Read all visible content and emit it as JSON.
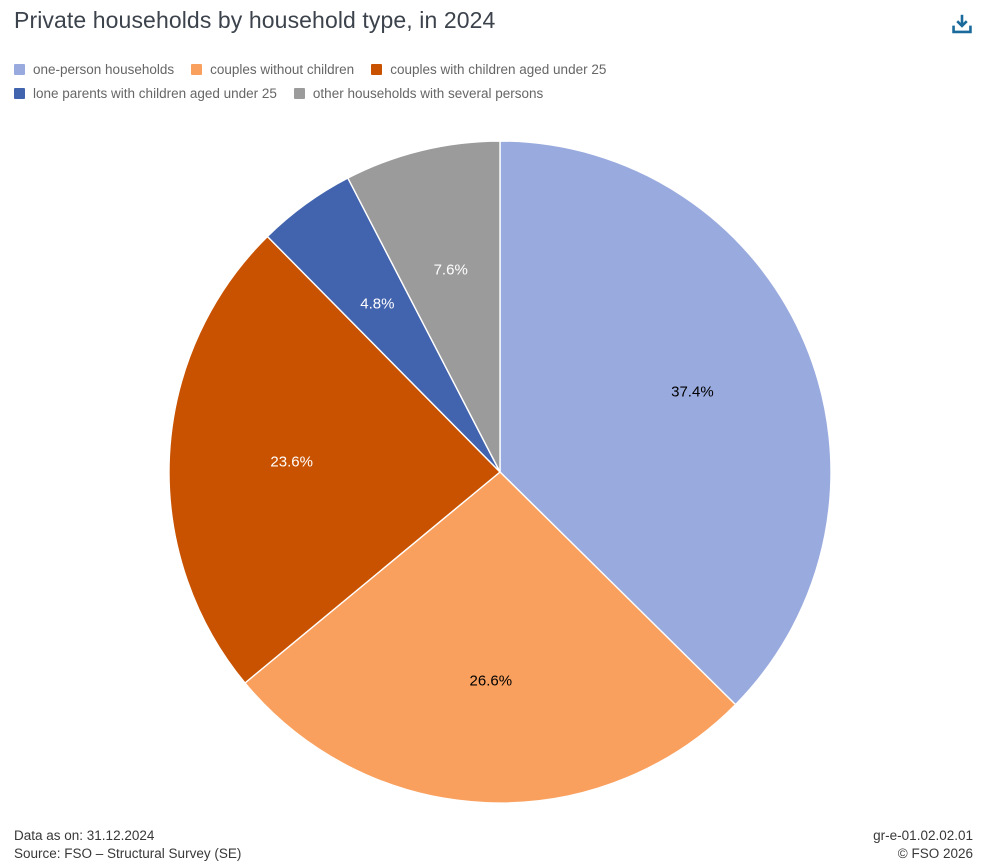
{
  "header": {
    "title": "Private households by household type, in 2024"
  },
  "chart_data": {
    "type": "pie",
    "title": "Private households by household type, in 2024",
    "unit": "%",
    "start_angle_deg": 0,
    "direction": "clockwise",
    "legend_position": "top-left",
    "slices": [
      {
        "label": "one-person households",
        "value": 37.4,
        "display": "37.4%",
        "color": "#99aade",
        "label_color": "#000000"
      },
      {
        "label": "couples without children",
        "value": 26.6,
        "display": "26.6%",
        "color": "#f9a05e",
        "label_color": "#000000"
      },
      {
        "label": "couples with children aged under 25",
        "value": 23.6,
        "display": "23.6%",
        "color": "#c85200",
        "label_color": "#ffffff"
      },
      {
        "label": "lone parents with children aged under 25",
        "value": 4.8,
        "display": "4.8%",
        "color": "#4263ae",
        "label_color": "#ffffff"
      },
      {
        "label": "other households with several persons",
        "value": 7.6,
        "display": "7.6%",
        "color": "#9b9b9b",
        "label_color": "#ffffff"
      }
    ]
  },
  "footer": {
    "data_as_on": "Data as on: 31.12.2024",
    "source": "Source: FSO – Structural Survey (SE)",
    "reference": "gr-e-01.02.02.01",
    "copyright": "© FSO 2026"
  },
  "colors": {
    "accent": "#1a6a9b",
    "title_text": "#3c434c",
    "legend_text": "#666666",
    "footer_text": "#383838",
    "slice_separator": "#ffffff"
  }
}
